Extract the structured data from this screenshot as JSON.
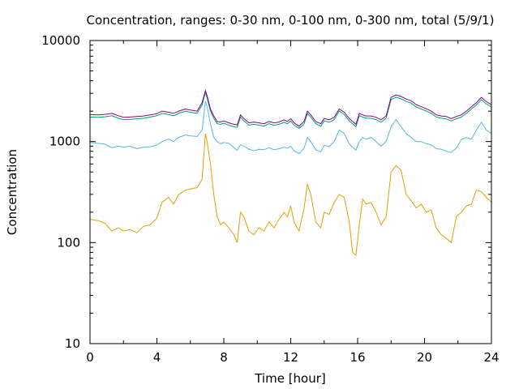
{
  "chart_data": {
    "type": "line",
    "title": "Concentration, ranges: 0-30 nm, 0-100 nm, 0-300 nm, total (5/9/1)",
    "xlabel": "Time [hour]",
    "ylabel": "Concentration",
    "xlim": [
      0,
      24
    ],
    "ylim": [
      10,
      10000
    ],
    "yscale": "log",
    "xticks": [
      "0",
      "4",
      "8",
      "12",
      "16",
      "20",
      "24"
    ],
    "yticks": [
      "10",
      "100",
      "1000",
      "10000"
    ],
    "grid": false,
    "legend": "none",
    "series": [
      {
        "color": "#e69f00",
        "x": [
          0,
          0.5,
          0.9,
          1.3,
          1.7,
          2.0,
          2.4,
          2.8,
          3.2,
          3.6,
          4.0,
          4.3,
          4.7,
          5.0,
          5.3,
          5.7,
          6.0,
          6.4,
          6.7,
          6.9,
          7.0,
          7.2,
          7.4,
          7.6,
          7.8,
          8.0,
          8.3,
          8.6,
          8.8,
          9.0,
          9.2,
          9.5,
          9.8,
          10.1,
          10.4,
          10.7,
          11.0,
          11.3,
          11.6,
          11.8,
          12.0,
          12.2,
          12.5,
          12.8,
          13.0,
          13.2,
          13.5,
          13.8,
          14.0,
          14.3,
          14.6,
          14.9,
          15.2,
          15.5,
          15.7,
          15.9,
          16.1,
          16.3,
          16.5,
          16.8,
          17.1,
          17.4,
          17.7,
          18.0,
          18.3,
          18.6,
          18.9,
          19.2,
          19.5,
          19.8,
          20.1,
          20.4,
          20.7,
          21.0,
          21.3,
          21.6,
          21.9,
          22.2,
          22.5,
          22.8,
          23.1,
          23.4,
          23.7,
          24.0
        ],
        "values": [
          170,
          165,
          155,
          130,
          140,
          130,
          135,
          125,
          145,
          150,
          175,
          250,
          280,
          240,
          300,
          330,
          340,
          350,
          420,
          1200,
          1000,
          600,
          300,
          180,
          150,
          160,
          140,
          120,
          100,
          200,
          180,
          130,
          120,
          140,
          130,
          160,
          140,
          170,
          200,
          180,
          230,
          160,
          130,
          220,
          380,
          300,
          160,
          140,
          200,
          190,
          250,
          300,
          280,
          160,
          80,
          75,
          150,
          270,
          240,
          250,
          200,
          150,
          180,
          500,
          580,
          520,
          300,
          260,
          220,
          240,
          200,
          210,
          140,
          120,
          110,
          100,
          180,
          200,
          230,
          240,
          330,
          320,
          280,
          250
        ]
      },
      {
        "color": "#56b4e9",
        "x": [
          0,
          0.5,
          0.9,
          1.3,
          1.7,
          2.0,
          2.4,
          2.8,
          3.2,
          3.6,
          4.0,
          4.3,
          4.7,
          5.0,
          5.3,
          5.7,
          6.0,
          6.4,
          6.7,
          6.9,
          7.0,
          7.2,
          7.4,
          7.6,
          7.8,
          8.0,
          8.3,
          8.6,
          8.8,
          9.0,
          9.2,
          9.5,
          9.8,
          10.1,
          10.4,
          10.7,
          11.0,
          11.3,
          11.6,
          11.8,
          12.0,
          12.2,
          12.5,
          12.8,
          13.0,
          13.2,
          13.5,
          13.8,
          14.0,
          14.3,
          14.6,
          14.9,
          15.2,
          15.5,
          15.7,
          15.9,
          16.1,
          16.3,
          16.5,
          16.8,
          17.1,
          17.4,
          17.7,
          18.0,
          18.3,
          18.6,
          18.9,
          19.2,
          19.5,
          19.8,
          20.1,
          20.4,
          20.7,
          21.0,
          21.3,
          21.6,
          21.9,
          22.2,
          22.5,
          22.8,
          23.1,
          23.4,
          23.7,
          24.0
        ],
        "values": [
          980,
          960,
          940,
          870,
          900,
          880,
          900,
          850,
          880,
          890,
          920,
          1000,
          1060,
          1000,
          1100,
          1160,
          1140,
          1120,
          1300,
          2500,
          2200,
          1500,
          1100,
          1000,
          950,
          980,
          960,
          870,
          820,
          930,
          900,
          840,
          810,
          840,
          830,
          870,
          830,
          850,
          880,
          860,
          900,
          810,
          760,
          860,
          1100,
          1000,
          830,
          790,
          920,
          890,
          1000,
          1300,
          1200,
          950,
          880,
          820,
          1000,
          1100,
          1050,
          1100,
          1000,
          900,
          1000,
          1400,
          1650,
          1400,
          1200,
          1100,
          1000,
          1000,
          950,
          930,
          850,
          840,
          800,
          780,
          860,
          1050,
          1100,
          1050,
          1300,
          1550,
          1300,
          1200
        ]
      },
      {
        "color": "#009e73",
        "x": [
          0,
          0.5,
          0.9,
          1.3,
          1.7,
          2.0,
          2.4,
          2.8,
          3.2,
          3.6,
          4.0,
          4.3,
          4.7,
          5.0,
          5.3,
          5.7,
          6.0,
          6.4,
          6.7,
          6.9,
          7.0,
          7.2,
          7.4,
          7.6,
          7.8,
          8.0,
          8.3,
          8.6,
          8.8,
          9.0,
          9.2,
          9.5,
          9.8,
          10.1,
          10.4,
          10.7,
          11.0,
          11.3,
          11.6,
          11.8,
          12.0,
          12.2,
          12.5,
          12.8,
          13.0,
          13.2,
          13.5,
          13.8,
          14.0,
          14.3,
          14.6,
          14.9,
          15.2,
          15.5,
          15.7,
          15.9,
          16.1,
          16.3,
          16.5,
          16.8,
          17.1,
          17.4,
          17.7,
          18.0,
          18.3,
          18.6,
          18.9,
          19.2,
          19.5,
          19.8,
          20.1,
          20.4,
          20.7,
          21.0,
          21.3,
          21.6,
          21.9,
          22.2,
          22.5,
          22.8,
          23.1,
          23.4,
          23.7,
          24.0
        ],
        "values": [
          1750,
          1740,
          1760,
          1800,
          1700,
          1650,
          1660,
          1680,
          1700,
          1750,
          1800,
          1900,
          1850,
          1800,
          1900,
          2000,
          1950,
          1900,
          2300,
          3050,
          2700,
          2000,
          1700,
          1500,
          1480,
          1520,
          1450,
          1400,
          1380,
          1750,
          1600,
          1450,
          1480,
          1450,
          1420,
          1500,
          1450,
          1480,
          1550,
          1500,
          1600,
          1450,
          1350,
          1500,
          1900,
          1750,
          1500,
          1420,
          1600,
          1550,
          1650,
          2000,
          1850,
          1600,
          1500,
          1400,
          1800,
          1750,
          1700,
          1700,
          1650,
          1550,
          1700,
          2600,
          2750,
          2650,
          2500,
          2400,
          2200,
          2100,
          2000,
          1900,
          1750,
          1700,
          1680,
          1600,
          1680,
          1750,
          1900,
          2100,
          2300,
          2600,
          2350,
          2200
        ]
      },
      {
        "color": "#8b008b",
        "x": [
          0,
          0.5,
          0.9,
          1.3,
          1.7,
          2.0,
          2.4,
          2.8,
          3.2,
          3.6,
          4.0,
          4.3,
          4.7,
          5.0,
          5.3,
          5.7,
          6.0,
          6.4,
          6.7,
          6.9,
          7.0,
          7.2,
          7.4,
          7.6,
          7.8,
          8.0,
          8.3,
          8.6,
          8.8,
          9.0,
          9.2,
          9.5,
          9.8,
          10.1,
          10.4,
          10.7,
          11.0,
          11.3,
          11.6,
          11.8,
          12.0,
          12.2,
          12.5,
          12.8,
          13.0,
          13.2,
          13.5,
          13.8,
          14.0,
          14.3,
          14.6,
          14.9,
          15.2,
          15.5,
          15.7,
          15.9,
          16.1,
          16.3,
          16.5,
          16.8,
          17.1,
          17.4,
          17.7,
          18.0,
          18.3,
          18.6,
          18.9,
          19.2,
          19.5,
          19.8,
          20.1,
          20.4,
          20.7,
          21.0,
          21.3,
          21.6,
          21.9,
          22.2,
          22.5,
          22.8,
          23.1,
          23.4,
          23.7,
          24.0
        ],
        "values": [
          1850,
          1840,
          1860,
          1900,
          1800,
          1740,
          1750,
          1770,
          1790,
          1840,
          1890,
          2000,
          1950,
          1900,
          2000,
          2100,
          2050,
          2000,
          2420,
          3200,
          2840,
          2100,
          1790,
          1580,
          1560,
          1600,
          1530,
          1480,
          1460,
          1840,
          1690,
          1530,
          1560,
          1530,
          1500,
          1580,
          1530,
          1560,
          1640,
          1580,
          1690,
          1530,
          1420,
          1580,
          2000,
          1840,
          1580,
          1500,
          1690,
          1640,
          1740,
          2100,
          1950,
          1690,
          1580,
          1480,
          1900,
          1840,
          1790,
          1790,
          1740,
          1640,
          1790,
          2740,
          2900,
          2790,
          2640,
          2530,
          2320,
          2210,
          2110,
          2000,
          1840,
          1790,
          1770,
          1690,
          1770,
          1840,
          2000,
          2210,
          2420,
          2740,
          2480,
          2320
        ]
      }
    ]
  }
}
